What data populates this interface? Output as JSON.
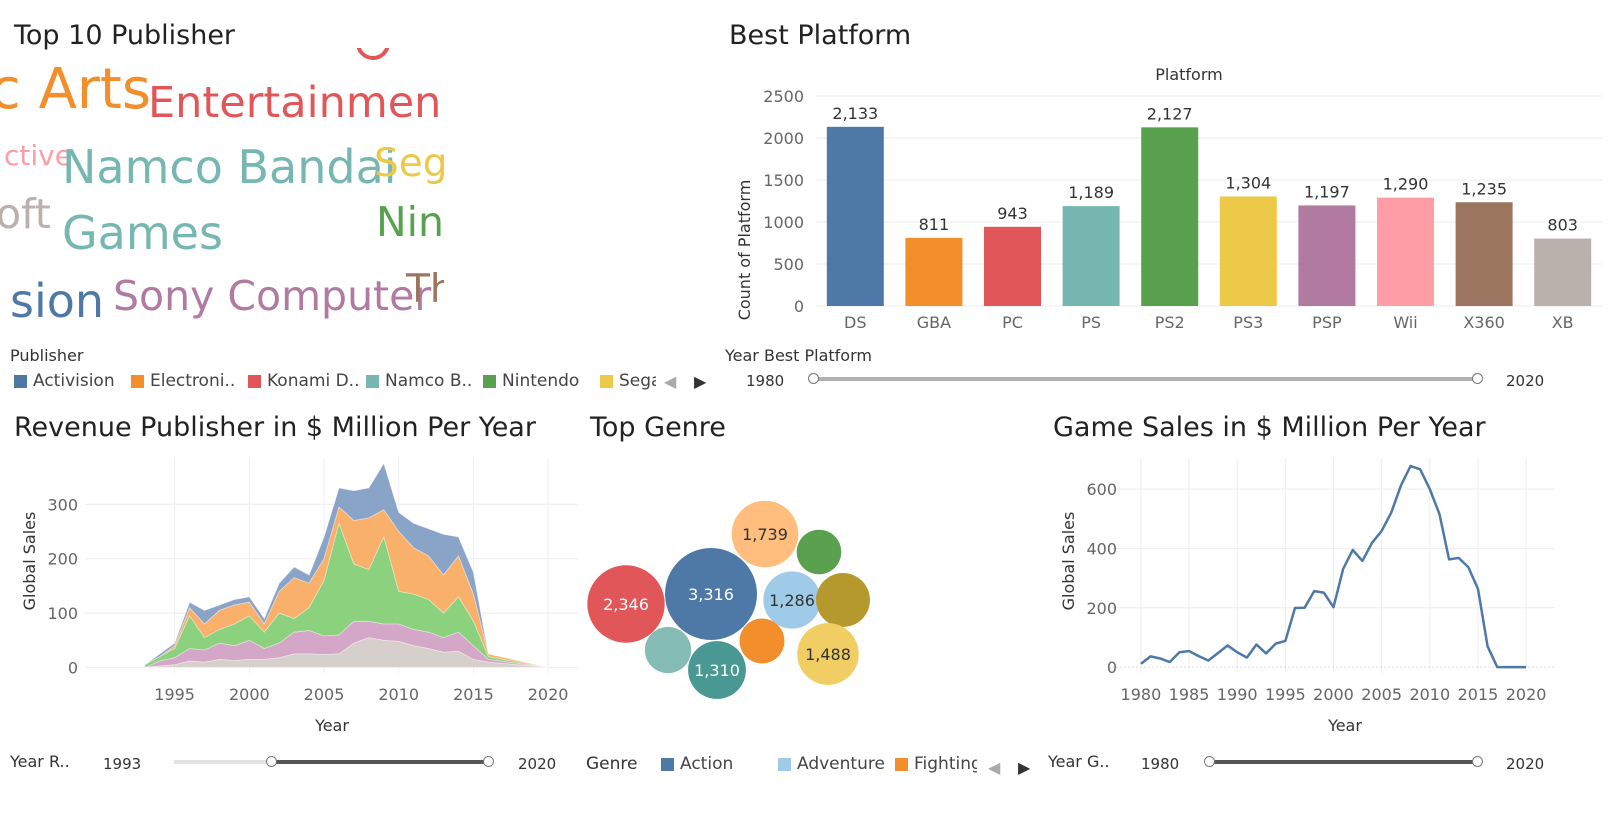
{
  "panels": {
    "publisher_title": "Top 10 Publisher",
    "platform_title": "Best Platform",
    "revenue_title": "Revenue Publisher in $ Million Per Year",
    "genre_title": "Top Genre",
    "sales_title": "Game Sales in $ Million Per Year"
  },
  "wordcloud": {
    "words": [
      {
        "text": "c Arts",
        "color": "#f28e2b"
      },
      {
        "text": "Entertainmen",
        "color": "#e15759"
      },
      {
        "text": "ctive",
        "color": "#ff9da7"
      },
      {
        "text": "Namco Bandai",
        "color": "#76b7b2"
      },
      {
        "text": "Seg",
        "color": "#edc948"
      },
      {
        "text": "oft",
        "color": "#bab0ac"
      },
      {
        "text": "Games",
        "color": "#76b7b2"
      },
      {
        "text": "Nin",
        "color": "#59a14f"
      },
      {
        "text": "sion",
        "color": "#4e79a7"
      },
      {
        "text": "Sony Computer",
        "color": "#b07aa1"
      },
      {
        "text": "Th",
        "color": "#9c755f"
      }
    ]
  },
  "publisher_legend": {
    "title": "Publisher",
    "items": [
      {
        "label": "Activision",
        "color": "#4e79a7"
      },
      {
        "label": "Electroni..",
        "color": "#f28e2b"
      },
      {
        "label": "Konami D..",
        "color": "#e15759"
      },
      {
        "label": "Namco B..",
        "color": "#76b7b2"
      },
      {
        "label": "Nintendo",
        "color": "#59a14f"
      },
      {
        "label": "Sega",
        "color": "#edc948"
      }
    ]
  },
  "platform_filter": {
    "title": "Year Best Platform",
    "min": "1980",
    "max": "2020"
  },
  "revenue_filter": {
    "title": "Year R..",
    "min": "1993",
    "max": "2020"
  },
  "sales_filter": {
    "title": "Year G..",
    "min": "1980",
    "max": "2020"
  },
  "genre_legend": {
    "title": "Genre",
    "items": [
      {
        "label": "Action",
        "color": "#4e79a7"
      },
      {
        "label": "Adventure",
        "color": "#a0cbe8"
      },
      {
        "label": "Fighting",
        "color": "#f28e2b"
      }
    ]
  },
  "chart_data": [
    {
      "id": "platform",
      "type": "bar",
      "title": "Best Platform",
      "header": "Platform",
      "ylabel": "Count of Platform",
      "ylim": [
        0,
        2500
      ],
      "yticks": [
        0,
        500,
        1000,
        1500,
        2000,
        2500
      ],
      "categories": [
        "DS",
        "GBA",
        "PC",
        "PS",
        "PS2",
        "PS3",
        "PSP",
        "Wii",
        "X360",
        "XB"
      ],
      "values": [
        2133,
        811,
        943,
        1189,
        2127,
        1304,
        1197,
        1290,
        1235,
        803
      ],
      "labels": [
        "2,133",
        "811",
        "943",
        "1,189",
        "2,127",
        "1,304",
        "1,197",
        "1,290",
        "1,235",
        "803"
      ],
      "colors": [
        "#4e79a7",
        "#f28e2b",
        "#e15759",
        "#76b7b2",
        "#59a14f",
        "#edc948",
        "#b07aa1",
        "#ff9da7",
        "#9c755f",
        "#bab0ac"
      ]
    },
    {
      "id": "revenue",
      "type": "area",
      "title": "Revenue Publisher in $ Million Per Year",
      "xlabel": "Year",
      "ylabel": "Global Sales",
      "xlim": [
        1989,
        2022
      ],
      "ylim": [
        -10,
        385
      ],
      "xticks": [
        1995,
        2000,
        2005,
        2010,
        2015,
        2020
      ],
      "yticks": [
        0,
        100,
        200,
        300
      ],
      "x": [
        1993,
        1994,
        1995,
        1996,
        1997,
        1998,
        1999,
        2000,
        2001,
        2002,
        2003,
        2004,
        2005,
        2006,
        2007,
        2008,
        2009,
        2010,
        2011,
        2012,
        2013,
        2014,
        2015,
        2016,
        2020
      ],
      "series": [
        {
          "name": "",
          "color": "#d7cfcb",
          "values": [
            0,
            3,
            5,
            12,
            10,
            15,
            13,
            15,
            15,
            18,
            25,
            25,
            24,
            25,
            45,
            55,
            50,
            48,
            40,
            35,
            28,
            30,
            15,
            10,
            0
          ]
        },
        {
          "name": "",
          "color": "#d4a6c8",
          "values": [
            0,
            12,
            18,
            35,
            32,
            45,
            40,
            50,
            35,
            45,
            65,
            68,
            58,
            60,
            85,
            85,
            80,
            80,
            70,
            65,
            55,
            65,
            40,
            15,
            0
          ]
        },
        {
          "name": "",
          "color": "#8cd17d",
          "values": [
            5,
            20,
            35,
            95,
            55,
            70,
            80,
            95,
            65,
            100,
            90,
            110,
            160,
            265,
            190,
            180,
            240,
            140,
            135,
            125,
            100,
            130,
            85,
            20,
            0
          ]
        },
        {
          "name": "",
          "color": "#f9b06b",
          "values": [
            5,
            20,
            40,
            110,
            80,
            105,
            115,
            120,
            80,
            140,
            165,
            155,
            200,
            295,
            270,
            275,
            290,
            250,
            220,
            205,
            170,
            205,
            135,
            25,
            0
          ]
        },
        {
          "name": "",
          "color": "#8aa4c8",
          "values": [
            5,
            25,
            45,
            120,
            105,
            115,
            125,
            130,
            90,
            155,
            185,
            170,
            240,
            330,
            325,
            330,
            375,
            285,
            265,
            255,
            245,
            240,
            175,
            25,
            0
          ]
        }
      ]
    },
    {
      "id": "genre",
      "type": "bubble",
      "title": "Top Genre",
      "bubbles": [
        {
          "label": "3,316",
          "value": 3316,
          "color": "#4e79a7"
        },
        {
          "label": "2,346",
          "value": 2346,
          "color": "#e15759"
        },
        {
          "label": "1,739",
          "value": 1739,
          "color": "#ffbe7d"
        },
        {
          "label": "",
          "value": 780,
          "color": "#59a14f"
        },
        {
          "label": "1,286",
          "value": 1286,
          "color": "#a0cbe8"
        },
        {
          "label": "",
          "value": 1140,
          "color": "#b6992d"
        },
        {
          "label": "1,488",
          "value": 1488,
          "color": "#f1ce63"
        },
        {
          "label": "",
          "value": 790,
          "color": "#f28e2b"
        },
        {
          "label": "1,310",
          "value": 1310,
          "color": "#499894"
        },
        {
          "label": "",
          "value": 840,
          "color": "#86bcb6"
        }
      ]
    },
    {
      "id": "sales",
      "type": "line",
      "title": "Game Sales in $ Million Per Year",
      "xlabel": "Year",
      "ylabel": "Global Sales",
      "xlim": [
        1977,
        2023
      ],
      "ylim": [
        -20,
        705
      ],
      "xticks": [
        1980,
        1985,
        1990,
        1995,
        2000,
        2005,
        2010,
        2015,
        2020
      ],
      "yticks": [
        0,
        200,
        400,
        600
      ],
      "color": "#4e79a7",
      "x": [
        1980,
        1981,
        1982,
        1983,
        1984,
        1985,
        1986,
        1987,
        1988,
        1989,
        1990,
        1991,
        1992,
        1993,
        1994,
        1995,
        1996,
        1997,
        1998,
        1999,
        2000,
        2001,
        2002,
        2003,
        2004,
        2005,
        2006,
        2007,
        2008,
        2009,
        2010,
        2011,
        2012,
        2013,
        2014,
        2015,
        2016,
        2017,
        2018,
        2019,
        2020
      ],
      "values": [
        11,
        36,
        29,
        17,
        50,
        54,
        37,
        22,
        47,
        73,
        50,
        32,
        76,
        46,
        79,
        88,
        199,
        200,
        256,
        251,
        202,
        331,
        395,
        358,
        419,
        459,
        521,
        612,
        678,
        667,
        600,
        516,
        363,
        368,
        337,
        264,
        70,
        0,
        0,
        0,
        0
      ]
    }
  ]
}
